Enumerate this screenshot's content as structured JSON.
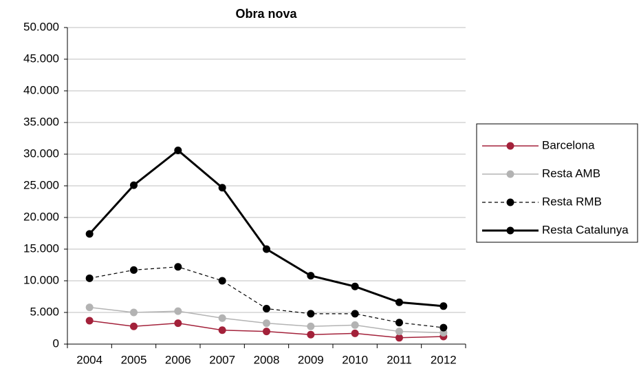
{
  "chart_data": {
    "type": "line",
    "title": "Obra nova",
    "categories": [
      "2004",
      "2005",
      "2006",
      "2007",
      "2008",
      "2009",
      "2010",
      "2011",
      "2012"
    ],
    "series": [
      {
        "name": "Barcelona",
        "color": "#a3213a",
        "line_width": 1.5,
        "dashed": false,
        "values": [
          3700,
          2800,
          3300,
          2200,
          2000,
          1500,
          1700,
          1000,
          1200
        ]
      },
      {
        "name": "Resta AMB",
        "color": "#b3b3b3",
        "line_width": 1.5,
        "dashed": false,
        "values": [
          5800,
          5000,
          5200,
          4100,
          3300,
          2800,
          3000,
          2000,
          1800
        ]
      },
      {
        "name": "Resta RMB",
        "color": "#000000",
        "line_width": 1.2,
        "dashed": true,
        "values": [
          10400,
          11700,
          12200,
          10000,
          5600,
          4800,
          4800,
          3400,
          2600
        ]
      },
      {
        "name": "Resta Catalunya",
        "color": "#000000",
        "line_width": 3,
        "dashed": false,
        "values": [
          17400,
          25100,
          30600,
          24700,
          15000,
          10800,
          9100,
          6600,
          6000
        ]
      }
    ],
    "ylim": [
      0,
      50000
    ],
    "yticks": [
      0,
      {
        "value": 5000,
        "label": "5.000"
      },
      {
        "value": 10000,
        "label": "10.000"
      },
      {
        "value": 15000,
        "label": "15.000"
      },
      {
        "value": 20000,
        "label": "20.000"
      },
      {
        "value": 25000,
        "label": "25.000"
      },
      {
        "value": 30000,
        "label": "30.000"
      },
      {
        "value": 35000,
        "label": "35.000"
      },
      {
        "value": 40000,
        "label": "40.000"
      },
      {
        "value": 45000,
        "label": "45.000"
      },
      {
        "value": 50000,
        "label": "50.000"
      }
    ],
    "grid": true,
    "legend": "right"
  }
}
